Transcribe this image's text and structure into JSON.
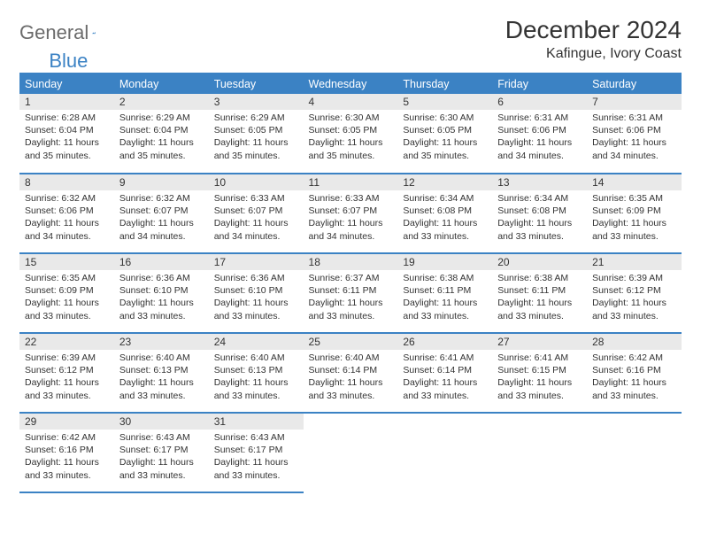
{
  "brand": {
    "word1": "General",
    "word2": "Blue"
  },
  "title": "December 2024",
  "location": "Kafingue, Ivory Coast",
  "colors": {
    "accent": "#3b82c4",
    "header_bg": "#3b82c4",
    "header_text": "#ffffff",
    "daynum_bg": "#e9e9e9",
    "text": "#333333",
    "logo_gray": "#6b6b6b"
  },
  "layout": {
    "columns": 7,
    "font_family": "Arial",
    "title_fontsize": 28,
    "location_fontsize": 16,
    "header_fontsize": 12.5,
    "cell_fontsize": 10.5
  },
  "day_headers": [
    "Sunday",
    "Monday",
    "Tuesday",
    "Wednesday",
    "Thursday",
    "Friday",
    "Saturday"
  ],
  "days": [
    {
      "n": 1,
      "sunrise": "6:28 AM",
      "sunset": "6:04 PM",
      "daylight": "11 hours and 35 minutes."
    },
    {
      "n": 2,
      "sunrise": "6:29 AM",
      "sunset": "6:04 PM",
      "daylight": "11 hours and 35 minutes."
    },
    {
      "n": 3,
      "sunrise": "6:29 AM",
      "sunset": "6:05 PM",
      "daylight": "11 hours and 35 minutes."
    },
    {
      "n": 4,
      "sunrise": "6:30 AM",
      "sunset": "6:05 PM",
      "daylight": "11 hours and 35 minutes."
    },
    {
      "n": 5,
      "sunrise": "6:30 AM",
      "sunset": "6:05 PM",
      "daylight": "11 hours and 35 minutes."
    },
    {
      "n": 6,
      "sunrise": "6:31 AM",
      "sunset": "6:06 PM",
      "daylight": "11 hours and 34 minutes."
    },
    {
      "n": 7,
      "sunrise": "6:31 AM",
      "sunset": "6:06 PM",
      "daylight": "11 hours and 34 minutes."
    },
    {
      "n": 8,
      "sunrise": "6:32 AM",
      "sunset": "6:06 PM",
      "daylight": "11 hours and 34 minutes."
    },
    {
      "n": 9,
      "sunrise": "6:32 AM",
      "sunset": "6:07 PM",
      "daylight": "11 hours and 34 minutes."
    },
    {
      "n": 10,
      "sunrise": "6:33 AM",
      "sunset": "6:07 PM",
      "daylight": "11 hours and 34 minutes."
    },
    {
      "n": 11,
      "sunrise": "6:33 AM",
      "sunset": "6:07 PM",
      "daylight": "11 hours and 34 minutes."
    },
    {
      "n": 12,
      "sunrise": "6:34 AM",
      "sunset": "6:08 PM",
      "daylight": "11 hours and 33 minutes."
    },
    {
      "n": 13,
      "sunrise": "6:34 AM",
      "sunset": "6:08 PM",
      "daylight": "11 hours and 33 minutes."
    },
    {
      "n": 14,
      "sunrise": "6:35 AM",
      "sunset": "6:09 PM",
      "daylight": "11 hours and 33 minutes."
    },
    {
      "n": 15,
      "sunrise": "6:35 AM",
      "sunset": "6:09 PM",
      "daylight": "11 hours and 33 minutes."
    },
    {
      "n": 16,
      "sunrise": "6:36 AM",
      "sunset": "6:10 PM",
      "daylight": "11 hours and 33 minutes."
    },
    {
      "n": 17,
      "sunrise": "6:36 AM",
      "sunset": "6:10 PM",
      "daylight": "11 hours and 33 minutes."
    },
    {
      "n": 18,
      "sunrise": "6:37 AM",
      "sunset": "6:11 PM",
      "daylight": "11 hours and 33 minutes."
    },
    {
      "n": 19,
      "sunrise": "6:38 AM",
      "sunset": "6:11 PM",
      "daylight": "11 hours and 33 minutes."
    },
    {
      "n": 20,
      "sunrise": "6:38 AM",
      "sunset": "6:11 PM",
      "daylight": "11 hours and 33 minutes."
    },
    {
      "n": 21,
      "sunrise": "6:39 AM",
      "sunset": "6:12 PM",
      "daylight": "11 hours and 33 minutes."
    },
    {
      "n": 22,
      "sunrise": "6:39 AM",
      "sunset": "6:12 PM",
      "daylight": "11 hours and 33 minutes."
    },
    {
      "n": 23,
      "sunrise": "6:40 AM",
      "sunset": "6:13 PM",
      "daylight": "11 hours and 33 minutes."
    },
    {
      "n": 24,
      "sunrise": "6:40 AM",
      "sunset": "6:13 PM",
      "daylight": "11 hours and 33 minutes."
    },
    {
      "n": 25,
      "sunrise": "6:40 AM",
      "sunset": "6:14 PM",
      "daylight": "11 hours and 33 minutes."
    },
    {
      "n": 26,
      "sunrise": "6:41 AM",
      "sunset": "6:14 PM",
      "daylight": "11 hours and 33 minutes."
    },
    {
      "n": 27,
      "sunrise": "6:41 AM",
      "sunset": "6:15 PM",
      "daylight": "11 hours and 33 minutes."
    },
    {
      "n": 28,
      "sunrise": "6:42 AM",
      "sunset": "6:16 PM",
      "daylight": "11 hours and 33 minutes."
    },
    {
      "n": 29,
      "sunrise": "6:42 AM",
      "sunset": "6:16 PM",
      "daylight": "11 hours and 33 minutes."
    },
    {
      "n": 30,
      "sunrise": "6:43 AM",
      "sunset": "6:17 PM",
      "daylight": "11 hours and 33 minutes."
    },
    {
      "n": 31,
      "sunrise": "6:43 AM",
      "sunset": "6:17 PM",
      "daylight": "11 hours and 33 minutes."
    }
  ],
  "labels": {
    "sunrise": "Sunrise: ",
    "sunset": "Sunset: ",
    "daylight": "Daylight: "
  },
  "trailing_empty": 4
}
